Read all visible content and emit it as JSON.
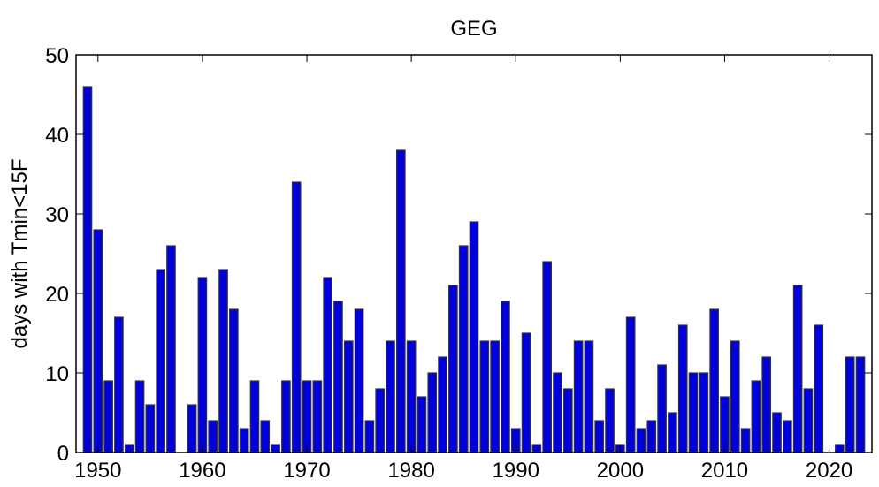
{
  "chart_data": {
    "type": "bar",
    "title": "GEG",
    "xlabel": "",
    "ylabel": "days with  Tmin<15F",
    "xlim": [
      1947.9,
      2024.1
    ],
    "ylim": [
      0,
      50
    ],
    "xticks": [
      1950,
      1960,
      1970,
      1980,
      1990,
      2000,
      2010,
      2020
    ],
    "yticks": [
      0,
      10,
      20,
      30,
      40,
      50
    ],
    "grid": false,
    "bar_color": "#0000dd",
    "edge_color": "#333333",
    "x": [
      1949,
      1950,
      1951,
      1952,
      1953,
      1954,
      1955,
      1956,
      1957,
      1958,
      1959,
      1960,
      1961,
      1962,
      1963,
      1964,
      1965,
      1966,
      1967,
      1968,
      1969,
      1970,
      1971,
      1972,
      1973,
      1974,
      1975,
      1976,
      1977,
      1978,
      1979,
      1980,
      1981,
      1982,
      1983,
      1984,
      1985,
      1986,
      1987,
      1988,
      1989,
      1990,
      1991,
      1992,
      1993,
      1994,
      1995,
      1996,
      1997,
      1998,
      1999,
      2000,
      2001,
      2002,
      2003,
      2004,
      2005,
      2006,
      2007,
      2008,
      2009,
      2010,
      2011,
      2012,
      2013,
      2014,
      2015,
      2016,
      2017,
      2018,
      2019,
      2020,
      2021,
      2022,
      2023
    ],
    "values": [
      46,
      28,
      9,
      17,
      1,
      9,
      6,
      23,
      26,
      0,
      6,
      22,
      4,
      23,
      18,
      3,
      9,
      4,
      1,
      9,
      34,
      9,
      9,
      22,
      19,
      14,
      18,
      4,
      8,
      14,
      38,
      14,
      7,
      10,
      12,
      21,
      26,
      29,
      14,
      14,
      19,
      3,
      15,
      1,
      24,
      10,
      8,
      14,
      14,
      4,
      8,
      1,
      17,
      3,
      4,
      11,
      5,
      16,
      10,
      10,
      18,
      7,
      14,
      3,
      9,
      12,
      5,
      4,
      21,
      8,
      16,
      0,
      1,
      12,
      12
    ]
  }
}
